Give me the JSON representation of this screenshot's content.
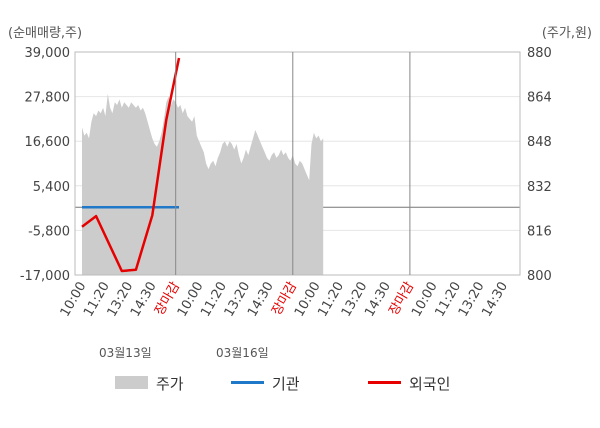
{
  "chart_data": {
    "type": "line",
    "left_axis": {
      "unit": "(순매매량,주)",
      "ticks": [
        "39,000",
        "27,800",
        "16,600",
        "5,400",
        "-5,800",
        "-17,000"
      ],
      "range": [
        -17000,
        39000
      ]
    },
    "right_axis": {
      "unit": "(주가,원)",
      "ticks": [
        "880",
        "864",
        "848",
        "832",
        "816",
        "800"
      ],
      "range": [
        800,
        880
      ]
    },
    "x_ticks": [
      "10:00",
      "11:20",
      "13:20",
      "14:30",
      "장마감",
      "10:00",
      "11:20",
      "13:20",
      "14:30",
      "장마감",
      "10:00",
      "11:20",
      "13:20",
      "14:30",
      "장마감",
      "10:00",
      "11:20",
      "13:20",
      "14:30"
    ],
    "close_color": "#e60000",
    "dates": [
      "03월13일",
      "03월16일"
    ],
    "series": [
      {
        "name": "주가",
        "color": "#cccccc",
        "axis": "right",
        "values": [
          [
            0.0,
            853
          ],
          [
            0.1,
            850
          ],
          [
            0.2,
            851
          ],
          [
            0.3,
            849
          ],
          [
            0.4,
            855
          ],
          [
            0.5,
            858
          ],
          [
            0.6,
            857
          ],
          [
            0.7,
            859
          ],
          [
            0.8,
            858
          ],
          [
            0.9,
            860
          ],
          [
            1.0,
            857
          ],
          [
            1.1,
            865
          ],
          [
            1.2,
            860
          ],
          [
            1.3,
            858
          ],
          [
            1.4,
            862
          ],
          [
            1.5,
            861
          ],
          [
            1.6,
            863
          ],
          [
            1.7,
            860
          ],
          [
            1.8,
            862
          ],
          [
            1.9,
            861
          ],
          [
            2.0,
            860
          ],
          [
            2.1,
            862
          ],
          [
            2.2,
            861
          ],
          [
            2.3,
            860
          ],
          [
            2.4,
            861
          ],
          [
            2.5,
            859
          ],
          [
            2.6,
            860
          ],
          [
            2.7,
            858
          ],
          [
            2.8,
            855
          ],
          [
            2.9,
            852
          ],
          [
            3.0,
            849
          ],
          [
            3.1,
            847
          ],
          [
            3.2,
            846
          ],
          [
            3.3,
            848
          ],
          [
            3.4,
            851
          ],
          [
            3.5,
            856
          ],
          [
            3.6,
            862
          ],
          [
            3.7,
            864
          ],
          [
            3.8,
            861
          ],
          [
            3.9,
            863
          ],
          [
            4.0,
            862
          ],
          [
            4.1,
            860
          ],
          [
            4.2,
            861
          ],
          [
            4.3,
            858
          ],
          [
            4.4,
            860
          ],
          [
            4.5,
            857
          ],
          [
            4.6,
            856
          ],
          [
            4.7,
            855
          ],
          [
            4.8,
            857
          ],
          [
            4.9,
            850
          ],
          [
            5.0,
            848
          ],
          [
            5.1,
            846
          ],
          [
            5.2,
            844
          ],
          [
            5.3,
            840
          ],
          [
            5.4,
            838
          ],
          [
            5.5,
            840
          ],
          [
            5.6,
            841
          ],
          [
            5.7,
            839
          ],
          [
            5.8,
            842
          ],
          [
            5.9,
            844
          ],
          [
            6.0,
            847
          ],
          [
            6.1,
            848
          ],
          [
            6.2,
            846
          ],
          [
            6.3,
            848
          ],
          [
            6.4,
            847
          ],
          [
            6.5,
            845
          ],
          [
            6.6,
            847
          ],
          [
            6.7,
            843
          ],
          [
            6.8,
            840
          ],
          [
            6.9,
            842
          ],
          [
            7.0,
            845
          ],
          [
            7.1,
            843
          ],
          [
            7.2,
            846
          ],
          [
            7.3,
            849
          ],
          [
            7.4,
            852
          ],
          [
            7.5,
            850
          ],
          [
            7.6,
            848
          ],
          [
            7.7,
            846
          ],
          [
            7.8,
            844
          ],
          [
            7.9,
            842
          ],
          [
            8.0,
            841
          ],
          [
            8.1,
            843
          ],
          [
            8.2,
            844
          ],
          [
            8.3,
            842
          ],
          [
            8.4,
            843
          ],
          [
            8.5,
            845
          ],
          [
            8.6,
            843
          ],
          [
            8.7,
            844
          ],
          [
            8.8,
            842
          ],
          [
            8.9,
            841
          ],
          [
            9.0,
            843
          ],
          [
            9.1,
            840
          ],
          [
            9.2,
            839
          ],
          [
            9.3,
            841
          ],
          [
            9.4,
            840
          ],
          [
            9.5,
            838
          ],
          [
            9.6,
            836
          ],
          [
            9.7,
            834
          ],
          [
            9.8,
            847
          ],
          [
            9.9,
            851
          ],
          [
            10.0,
            849
          ],
          [
            10.1,
            850
          ],
          [
            10.2,
            848
          ],
          [
            10.3,
            849
          ]
        ]
      },
      {
        "name": "기관",
        "color": "#1f78c8",
        "axis": "left",
        "values": [
          [
            0.0,
            0
          ],
          [
            3.6,
            0
          ],
          [
            4.14,
            0
          ]
        ]
      },
      {
        "name": "외국인",
        "color": "#e60000",
        "axis": "left",
        "values": [
          [
            0.0,
            -4900
          ],
          [
            0.6,
            -2200
          ],
          [
            1.7,
            -16000
          ],
          [
            2.3,
            -15700
          ],
          [
            3.0,
            -2000
          ],
          [
            3.6,
            22000
          ],
          [
            4.14,
            37500
          ]
        ]
      }
    ]
  }
}
